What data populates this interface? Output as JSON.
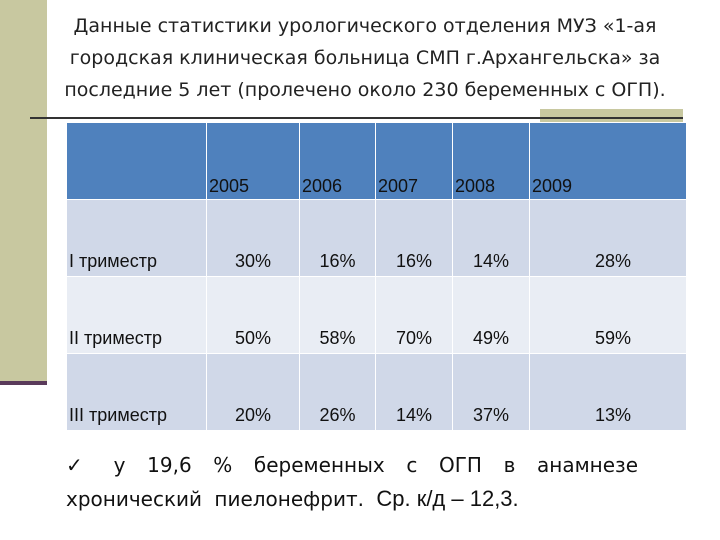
{
  "title": "Данные статистики урологического отделения МУЗ «1-ая городская клиническая больница СМП г.Архангельска» за последние 5 лет (пролечено около 230 беременных с ОГП).",
  "table": {
    "columns": [
      "2005",
      "2006",
      "2007",
      "2008",
      "2009"
    ],
    "rows": [
      {
        "label": "I триместр",
        "cells": [
          "30%",
          "16%",
          "16%",
          "14%",
          "28%"
        ]
      },
      {
        "label": "II триместр",
        "cells": [
          "50%",
          "58%",
          "70%",
          "49%",
          "59%"
        ]
      },
      {
        "label": "III триместр",
        "cells": [
          "20%",
          "26%",
          "14%",
          "37%",
          "13%"
        ]
      }
    ]
  },
  "note": {
    "bullet": "✓",
    "text": "у 19,6 % беременных с ОГП в анамнезе хронический пиелонефрит.",
    "tail": "Ср. к/д – 12,3."
  }
}
